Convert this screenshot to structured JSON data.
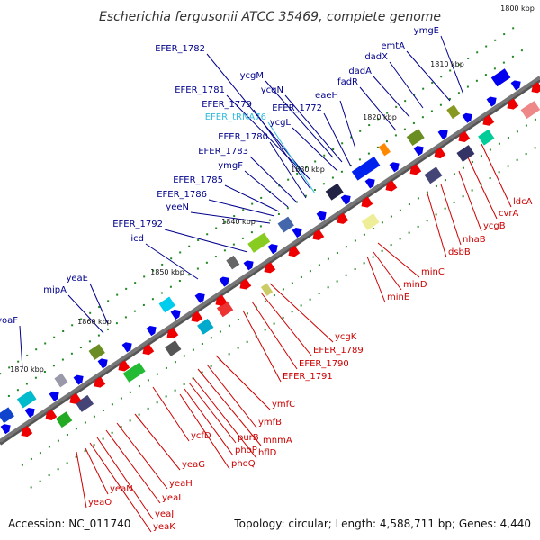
{
  "title": "Escherichia fergusonii ATCC 35469, complete genome",
  "accession": "Accession: NC_011740",
  "summary": "Topology: circular; Length: 4,588,711 bp; Genes: 4,440",
  "colors": {
    "forward": "#0000ee",
    "reverse": "#ee0000",
    "trna": "#33bbdd",
    "backbone": "#777777",
    "tick": "#228822"
  },
  "kbp_marks": [
    "1800 kbp",
    "1810 kbp",
    "1820 kbp",
    "1830 kbp",
    "1840 kbp",
    "1850 kbp",
    "1860 kbp",
    "1870 kbp"
  ],
  "forward_labels": [
    "ymgE",
    "emtA",
    "dadX",
    "dadA",
    "fadR",
    "eaeH",
    "ycgM",
    "ycgN",
    "EFER_1772",
    "ycgL",
    "EFER_1782",
    "EFER_1781",
    "EFER_1779",
    "EFER_tRNA76",
    "EFER_1780",
    "EFER_1783",
    "ymgF",
    "EFER_1785",
    "EFER_1786",
    "yeeN",
    "EFER_1792",
    "icd",
    "yeaE",
    "mipA",
    "yoaF"
  ],
  "reverse_labels": [
    "ldcA",
    "cvrA",
    "ycgB",
    "nhaB",
    "dsbB",
    "minC",
    "minD",
    "minE",
    "ycgK",
    "EFER_1789",
    "EFER_1790",
    "EFER_1791",
    "ymfC",
    "ymfB",
    "mnmA",
    "hflD",
    "purB",
    "phoP",
    "phoQ",
    "ycfD",
    "yeaG",
    "yeaH",
    "yeaI",
    "yeaJ",
    "yeaK",
    "yeaN",
    "yeaO"
  ]
}
